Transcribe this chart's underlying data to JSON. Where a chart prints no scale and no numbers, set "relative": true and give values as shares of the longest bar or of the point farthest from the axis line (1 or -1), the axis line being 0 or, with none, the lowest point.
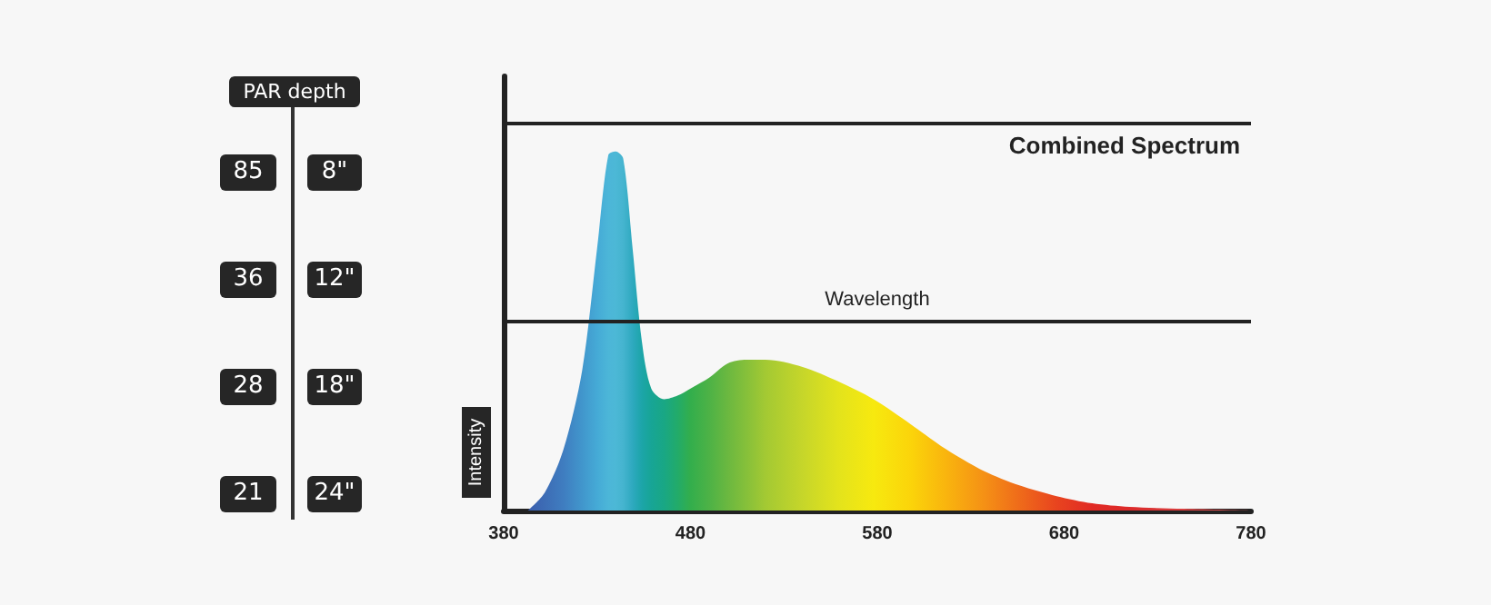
{
  "chart_data": [
    {
      "type": "other",
      "annotations": [
        "PAR",
        "depth",
        "85",
        "8\"",
        "36",
        "12\"",
        "28",
        "18\"",
        "21",
        "24\""
      ]
    },
    {
      "type": "area",
      "relative": true,
      "xlabel": null,
      "ylabel": "Intensity",
      "xlim": [
        380,
        780
      ],
      "xticks": [
        380,
        480,
        580,
        680,
        780
      ],
      "x": [
        393,
        402,
        412,
        422,
        430,
        436,
        440,
        444,
        449,
        454,
        459,
        466,
        473,
        480,
        490,
        500,
        510,
        520,
        540,
        559,
        578,
        598,
        617,
        637,
        656,
        676,
        695,
        715,
        744,
        780
      ],
      "values": [
        0,
        0.05,
        0.17,
        0.39,
        0.73,
        0.99,
        1,
        0.98,
        0.73,
        0.47,
        0.34,
        0.31,
        0.32,
        0.34,
        0.37,
        0.41,
        0.42,
        0.42,
        0.4,
        0.36,
        0.31,
        0.24,
        0.17,
        0.11,
        0.07,
        0.04,
        0.02,
        0.01,
        0.005,
        0
      ],
      "colors": [
        "#3b5fae",
        "#3d6cb5",
        "#3f7dc0",
        "#4196cc",
        "#45aad6",
        "#4cb6d8",
        "#4cb8d6",
        "#45b4cf",
        "#2ea9bf",
        "#1ca5a8",
        "#17a596",
        "#19a784",
        "#22ab6a",
        "#33ae4c",
        "#4db246",
        "#6bb840",
        "#86c03a",
        "#a3c933",
        "#c6d62a",
        "#e3e31c",
        "#f7e90f",
        "#fbd40a",
        "#f9b40e",
        "#f59115",
        "#ef6b1a",
        "#e8441f",
        "#e12a24",
        "#dc2a2a",
        "#d94040",
        "#e06060"
      ],
      "ref_lines": [
        {
          "axis": "y",
          "value": 1.08,
          "label": "Combined Spectrum",
          "color": "#222222"
        },
        {
          "axis": "y",
          "value": 0.53,
          "label": "Wavelength",
          "color": "#222222"
        }
      ]
    }
  ]
}
